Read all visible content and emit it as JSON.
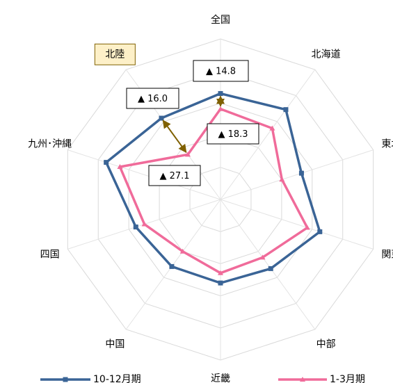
{
  "chart_data": {
    "type": "radar",
    "categories": [
      "全国",
      "北海道",
      "東北",
      "関東",
      "中部",
      "近畿",
      "中国",
      "四国",
      "九州･沖縄",
      "北陸"
    ],
    "rlim": [
      0,
      5
    ],
    "rticks": [
      1,
      2,
      3,
      4,
      5
    ],
    "grid": true,
    "series": [
      {
        "name": "10-12月期",
        "color": "#3a6496",
        "marker": "square",
        "values": [
          3.3,
          3.46,
          2.65,
          3.25,
          2.66,
          2.6,
          2.58,
          2.77,
          3.74,
          3.13
        ]
      },
      {
        "name": "1-3月期",
        "color": "#f06b9a",
        "marker": "triangle",
        "values": [
          2.82,
          2.74,
          2.01,
          2.84,
          2.23,
          2.29,
          2.0,
          2.49,
          3.29,
          1.73
        ]
      }
    ],
    "annotations": [
      "▲ 14.8",
      "▲ 16.0",
      "▲ 18.3",
      "▲ 27.1"
    ]
  }
}
